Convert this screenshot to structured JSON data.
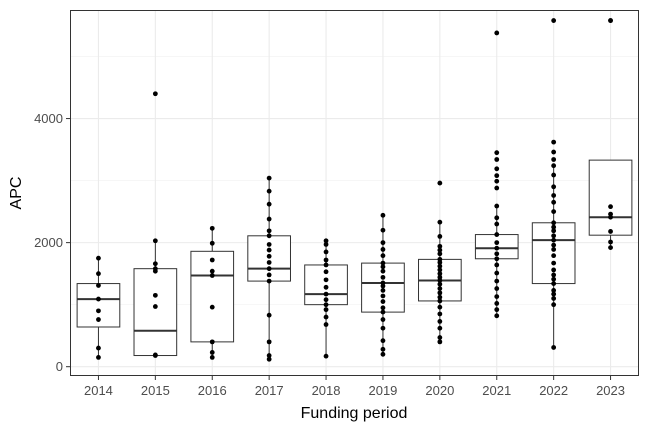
{
  "chart_data": {
    "type": "box",
    "xlabel": "Funding period",
    "ylabel": "APC",
    "ylim": [
      -150,
      5750
    ],
    "y_ticks": [
      0,
      2000,
      4000
    ],
    "grid": true,
    "theme": "black-and-white",
    "categories": [
      "2014",
      "2015",
      "2016",
      "2017",
      "2018",
      "2019",
      "2020",
      "2021",
      "2022",
      "2023"
    ],
    "boxes": [
      {
        "category": "2014",
        "lower_whisker": 150,
        "q1": 640,
        "median": 1090,
        "q3": 1340,
        "upper_whisker": 1750
      },
      {
        "category": "2015",
        "lower_whisker": 180,
        "q1": 180,
        "median": 580,
        "q3": 1580,
        "upper_whisker": 2030
      },
      {
        "category": "2016",
        "lower_whisker": 150,
        "q1": 400,
        "median": 1470,
        "q3": 1860,
        "upper_whisker": 2230
      },
      {
        "category": "2017",
        "lower_whisker": 120,
        "q1": 1380,
        "median": 1580,
        "q3": 2110,
        "upper_whisker": 3040
      },
      {
        "category": "2018",
        "lower_whisker": 170,
        "q1": 1000,
        "median": 1170,
        "q3": 1640,
        "upper_whisker": 2030
      },
      {
        "category": "2019",
        "lower_whisker": 200,
        "q1": 880,
        "median": 1350,
        "q3": 1670,
        "upper_whisker": 2440
      },
      {
        "category": "2020",
        "lower_whisker": 400,
        "q1": 1060,
        "median": 1390,
        "q3": 1730,
        "upper_whisker": 2330
      },
      {
        "category": "2021",
        "lower_whisker": 820,
        "q1": 1740,
        "median": 1910,
        "q3": 2130,
        "upper_whisker": 2590
      },
      {
        "category": "2022",
        "lower_whisker": 310,
        "q1": 1340,
        "median": 2040,
        "q3": 2320,
        "upper_whisker": 3240
      },
      {
        "category": "2023",
        "lower_whisker": 1920,
        "q1": 2120,
        "median": 2410,
        "q3": 3330,
        "upper_whisker": 3330
      }
    ],
    "points": [
      {
        "category": "2014",
        "values": [
          150,
          300,
          760,
          900,
          1090,
          1310,
          1500,
          1750
        ]
      },
      {
        "category": "2015",
        "values": [
          180,
          190,
          970,
          1150,
          1540,
          1580,
          1660,
          2030,
          4400
        ]
      },
      {
        "category": "2016",
        "values": [
          150,
          230,
          400,
          960,
          1470,
          1540,
          1720,
          1990,
          2230
        ]
      },
      {
        "category": "2017",
        "values": [
          120,
          180,
          400,
          830,
          1380,
          1480,
          1580,
          1680,
          1780,
          1880,
          1970,
          2110,
          2190,
          2380,
          2620,
          2830,
          3040
        ]
      },
      {
        "category": "2018",
        "values": [
          170,
          680,
          800,
          920,
          1000,
          1080,
          1170,
          1280,
          1400,
          1530,
          1640,
          1720,
          1850,
          1970,
          2030
        ]
      },
      {
        "category": "2019",
        "values": [
          200,
          280,
          420,
          620,
          760,
          880,
          950,
          1050,
          1140,
          1230,
          1300,
          1350,
          1440,
          1540,
          1610,
          1670,
          1790,
          1890,
          2000,
          2200,
          2440
        ]
      },
      {
        "category": "2020",
        "values": [
          400,
          470,
          620,
          730,
          850,
          960,
          1060,
          1120,
          1190,
          1260,
          1330,
          1390,
          1440,
          1500,
          1560,
          1620,
          1680,
          1730,
          1820,
          1880,
          1940,
          2100,
          2330,
          2960
        ]
      },
      {
        "category": "2021",
        "values": [
          820,
          920,
          1020,
          1130,
          1260,
          1380,
          1510,
          1640,
          1740,
          1820,
          1910,
          2000,
          2130,
          2300,
          2400,
          2590,
          2880,
          2990,
          3080,
          3190,
          3340,
          3450,
          5380
        ]
      },
      {
        "category": "2022",
        "values": [
          310,
          1000,
          1100,
          1170,
          1230,
          1340,
          1410,
          1480,
          1560,
          1670,
          1790,
          1890,
          1960,
          2040,
          2110,
          2190,
          2250,
          2320,
          2500,
          2650,
          2760,
          2900,
          3090,
          3240,
          3340,
          3460,
          3620,
          5580
        ]
      },
      {
        "category": "2023",
        "values": [
          1920,
          2010,
          2180,
          2410,
          2460,
          2580,
          5580,
          5580
        ]
      }
    ]
  }
}
